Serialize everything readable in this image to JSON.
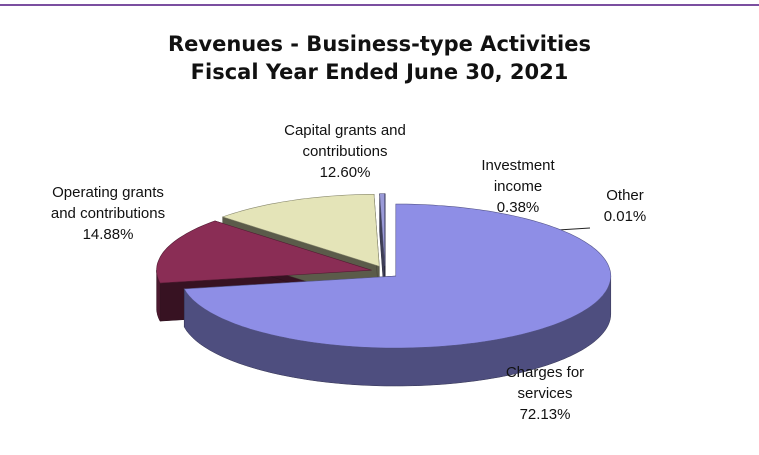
{
  "chart_data": {
    "type": "pie3d",
    "title": "Revenues - Business-type Activities",
    "subtitle": "Fiscal Year Ended June 30, 2021",
    "categories": [
      "Charges for services",
      "Operating grants and contributions",
      "Capital grants and contributions",
      "Investment income",
      "Other"
    ],
    "values": [
      72.13,
      14.88,
      12.6,
      0.38,
      0.01
    ],
    "value_labels": [
      "72.13%",
      "14.88%",
      "12.60%",
      "0.38%",
      "0.01%"
    ],
    "colors": [
      "#8e8ee6",
      "#8a2d55",
      "#e4e4b8",
      "#9a9ad8",
      "#50508e"
    ]
  }
}
